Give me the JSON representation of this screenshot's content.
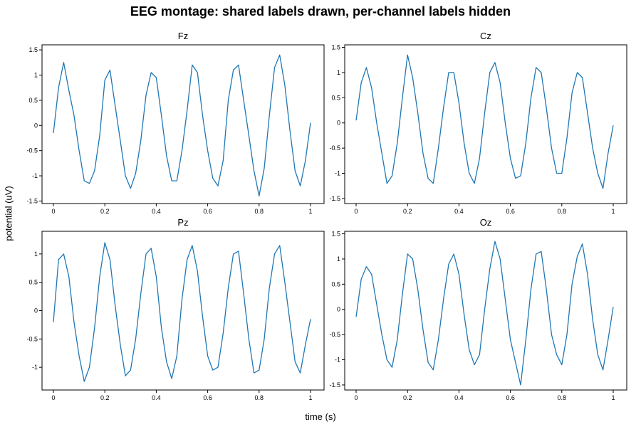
{
  "title": "EEG montage: shared labels drawn, per-channel labels hidden",
  "xlabel": "time (s)",
  "ylabel": "potential (uV)",
  "colors": {
    "line": "#1f77b4",
    "axis": "#000000"
  },
  "chart_data": [
    {
      "type": "line",
      "channel": "Fz",
      "xlim": [
        0,
        1
      ],
      "ylim": [
        -1.55,
        1.6
      ],
      "xticks": [
        "0",
        "0.2",
        "0.4",
        "0.6",
        "0.8",
        "1"
      ],
      "yticks": [
        "1.5",
        "1",
        "0.5",
        "0",
        "-0.5",
        "-1",
        "-1.5"
      ],
      "x": [
        0,
        0.02,
        0.04,
        0.06,
        0.08,
        0.1,
        0.12,
        0.14,
        0.16,
        0.18,
        0.2,
        0.22,
        0.24,
        0.26,
        0.28,
        0.3,
        0.32,
        0.34,
        0.36,
        0.38,
        0.4,
        0.42,
        0.44,
        0.46,
        0.48,
        0.5,
        0.52,
        0.54,
        0.56,
        0.58,
        0.6,
        0.62,
        0.64,
        0.66,
        0.68,
        0.7,
        0.72,
        0.74,
        0.76,
        0.78,
        0.8,
        0.82,
        0.84,
        0.86,
        0.88,
        0.9,
        0.92,
        0.94,
        0.96,
        0.98,
        1.0
      ],
      "y": [
        -0.15,
        0.75,
        1.25,
        0.7,
        0.2,
        -0.5,
        -1.1,
        -1.15,
        -0.9,
        -0.2,
        0.9,
        1.1,
        0.4,
        -0.3,
        -1.0,
        -1.25,
        -0.95,
        -0.3,
        0.6,
        1.05,
        0.95,
        0.2,
        -0.6,
        -1.1,
        -1.1,
        -0.5,
        0.3,
        1.2,
        1.05,
        0.2,
        -0.5,
        -1.05,
        -1.2,
        -0.7,
        0.5,
        1.1,
        1.2,
        0.5,
        -0.2,
        -0.9,
        -1.4,
        -0.85,
        0.2,
        1.15,
        1.4,
        0.8,
        -0.1,
        -0.9,
        -1.2,
        -0.7,
        0.05
      ]
    },
    {
      "type": "line",
      "channel": "Cz",
      "xlim": [
        0,
        1
      ],
      "ylim": [
        -1.6,
        1.55
      ],
      "xticks": [
        "0",
        "0.2",
        "0.4",
        "0.6",
        "0.8",
        "1"
      ],
      "yticks": [
        "1.5",
        "1",
        "0.5",
        "0",
        "-0.5",
        "-1",
        "-1.5"
      ],
      "x": [
        0,
        0.02,
        0.04,
        0.06,
        0.08,
        0.1,
        0.12,
        0.14,
        0.16,
        0.18,
        0.2,
        0.22,
        0.24,
        0.26,
        0.28,
        0.3,
        0.32,
        0.34,
        0.36,
        0.38,
        0.4,
        0.42,
        0.44,
        0.46,
        0.48,
        0.5,
        0.52,
        0.54,
        0.56,
        0.58,
        0.6,
        0.62,
        0.64,
        0.66,
        0.68,
        0.7,
        0.72,
        0.74,
        0.76,
        0.78,
        0.8,
        0.82,
        0.84,
        0.86,
        0.88,
        0.9,
        0.92,
        0.94,
        0.96,
        0.98,
        1.0
      ],
      "y": [
        0.05,
        0.8,
        1.1,
        0.7,
        0.0,
        -0.6,
        -1.2,
        -1.05,
        -0.4,
        0.5,
        1.35,
        0.9,
        0.2,
        -0.6,
        -1.1,
        -1.2,
        -0.5,
        0.3,
        1.0,
        1.0,
        0.4,
        -0.4,
        -1.0,
        -1.2,
        -0.7,
        0.2,
        1.0,
        1.2,
        0.8,
        0.0,
        -0.7,
        -1.1,
        -1.05,
        -0.4,
        0.5,
        1.1,
        1.0,
        0.3,
        -0.5,
        -1.0,
        -1.0,
        -0.3,
        0.6,
        1.0,
        0.9,
        0.2,
        -0.5,
        -1.0,
        -1.3,
        -0.6,
        -0.05
      ]
    },
    {
      "type": "line",
      "channel": "Pz",
      "xlim": [
        0,
        1
      ],
      "ylim": [
        -1.4,
        1.4
      ],
      "xticks": [
        "0",
        "0.2",
        "0.4",
        "0.6",
        "0.8",
        "1"
      ],
      "yticks": [
        "1",
        "0.5",
        "0",
        "-0.5",
        "-1"
      ],
      "x": [
        0,
        0.02,
        0.04,
        0.06,
        0.08,
        0.1,
        0.12,
        0.14,
        0.16,
        0.18,
        0.2,
        0.22,
        0.24,
        0.26,
        0.28,
        0.3,
        0.32,
        0.34,
        0.36,
        0.38,
        0.4,
        0.42,
        0.44,
        0.46,
        0.48,
        0.5,
        0.52,
        0.54,
        0.56,
        0.58,
        0.6,
        0.62,
        0.64,
        0.66,
        0.68,
        0.7,
        0.72,
        0.74,
        0.76,
        0.78,
        0.8,
        0.82,
        0.84,
        0.86,
        0.88,
        0.9,
        0.92,
        0.94,
        0.96,
        0.98,
        1.0
      ],
      "y": [
        -0.2,
        0.9,
        1.0,
        0.6,
        -0.2,
        -0.8,
        -1.25,
        -1.0,
        -0.3,
        0.6,
        1.2,
        0.9,
        0.1,
        -0.6,
        -1.15,
        -1.05,
        -0.5,
        0.3,
        1.0,
        1.1,
        0.6,
        -0.3,
        -0.9,
        -1.2,
        -0.8,
        0.2,
        0.9,
        1.15,
        0.7,
        -0.1,
        -0.8,
        -1.05,
        -1.0,
        -0.4,
        0.4,
        1.0,
        1.05,
        0.3,
        -0.5,
        -1.1,
        -1.05,
        -0.5,
        0.4,
        1.0,
        1.15,
        0.5,
        -0.2,
        -0.9,
        -1.1,
        -0.6,
        -0.15
      ]
    },
    {
      "type": "line",
      "channel": "Oz",
      "xlim": [
        0,
        1
      ],
      "ylim": [
        -1.6,
        1.55
      ],
      "xticks": [
        "0",
        "0.2",
        "0.4",
        "0.6",
        "0.8",
        "1"
      ],
      "yticks": [
        "1.5",
        "1",
        "0.5",
        "0",
        "-0.5",
        "-1",
        "-1.5"
      ],
      "x": [
        0,
        0.02,
        0.04,
        0.06,
        0.08,
        0.1,
        0.12,
        0.14,
        0.16,
        0.18,
        0.2,
        0.22,
        0.24,
        0.26,
        0.28,
        0.3,
        0.32,
        0.34,
        0.36,
        0.38,
        0.4,
        0.42,
        0.44,
        0.46,
        0.48,
        0.5,
        0.52,
        0.54,
        0.56,
        0.58,
        0.6,
        0.62,
        0.64,
        0.66,
        0.68,
        0.7,
        0.72,
        0.74,
        0.76,
        0.78,
        0.8,
        0.82,
        0.84,
        0.86,
        0.88,
        0.9,
        0.92,
        0.94,
        0.96,
        0.98,
        1.0
      ],
      "y": [
        -0.15,
        0.6,
        0.85,
        0.7,
        0.1,
        -0.5,
        -1.0,
        -1.15,
        -0.6,
        0.3,
        1.1,
        1.0,
        0.4,
        -0.4,
        -1.05,
        -1.2,
        -0.6,
        0.2,
        0.9,
        1.1,
        0.7,
        -0.1,
        -0.8,
        -1.1,
        -0.9,
        0.0,
        0.8,
        1.35,
        1.0,
        0.2,
        -0.6,
        -1.05,
        -1.5,
        -0.6,
        0.4,
        1.1,
        1.15,
        0.4,
        -0.5,
        -0.9,
        -1.1,
        -0.5,
        0.5,
        1.05,
        1.3,
        0.7,
        -0.2,
        -0.9,
        -1.2,
        -0.6,
        0.05
      ]
    }
  ]
}
